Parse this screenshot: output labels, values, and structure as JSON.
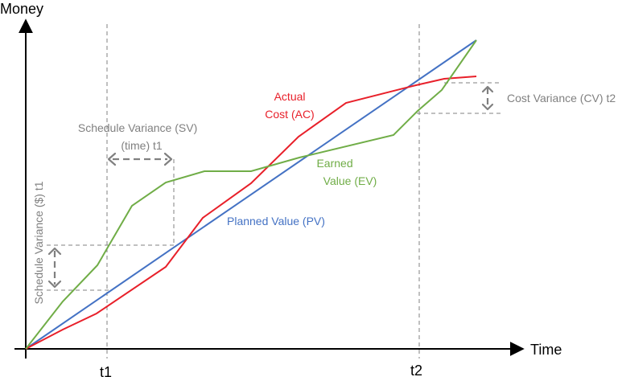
{
  "axes": {
    "y_label": "Money",
    "x_label": "Time",
    "ticks": [
      "t1",
      "t2"
    ]
  },
  "labels": {
    "actual_cost_line1": "Actual",
    "actual_cost_line2": "Cost (AC)",
    "earned_value_line1": "Earned",
    "earned_value_line2": "Value (EV)",
    "planned_value": "Planned Value (PV)",
    "sv_time_line1": "Schedule Variance (SV)",
    "sv_time_line2": "(time) t1",
    "sv_dollar": "Schedule Variance ($) t1",
    "cost_variance": "Cost Variance (CV) t2"
  },
  "colors": {
    "planned_value": "#4472C4",
    "actual_cost": "#E8202A",
    "earned_value": "#70AD47",
    "annotation": "#808080"
  }
}
